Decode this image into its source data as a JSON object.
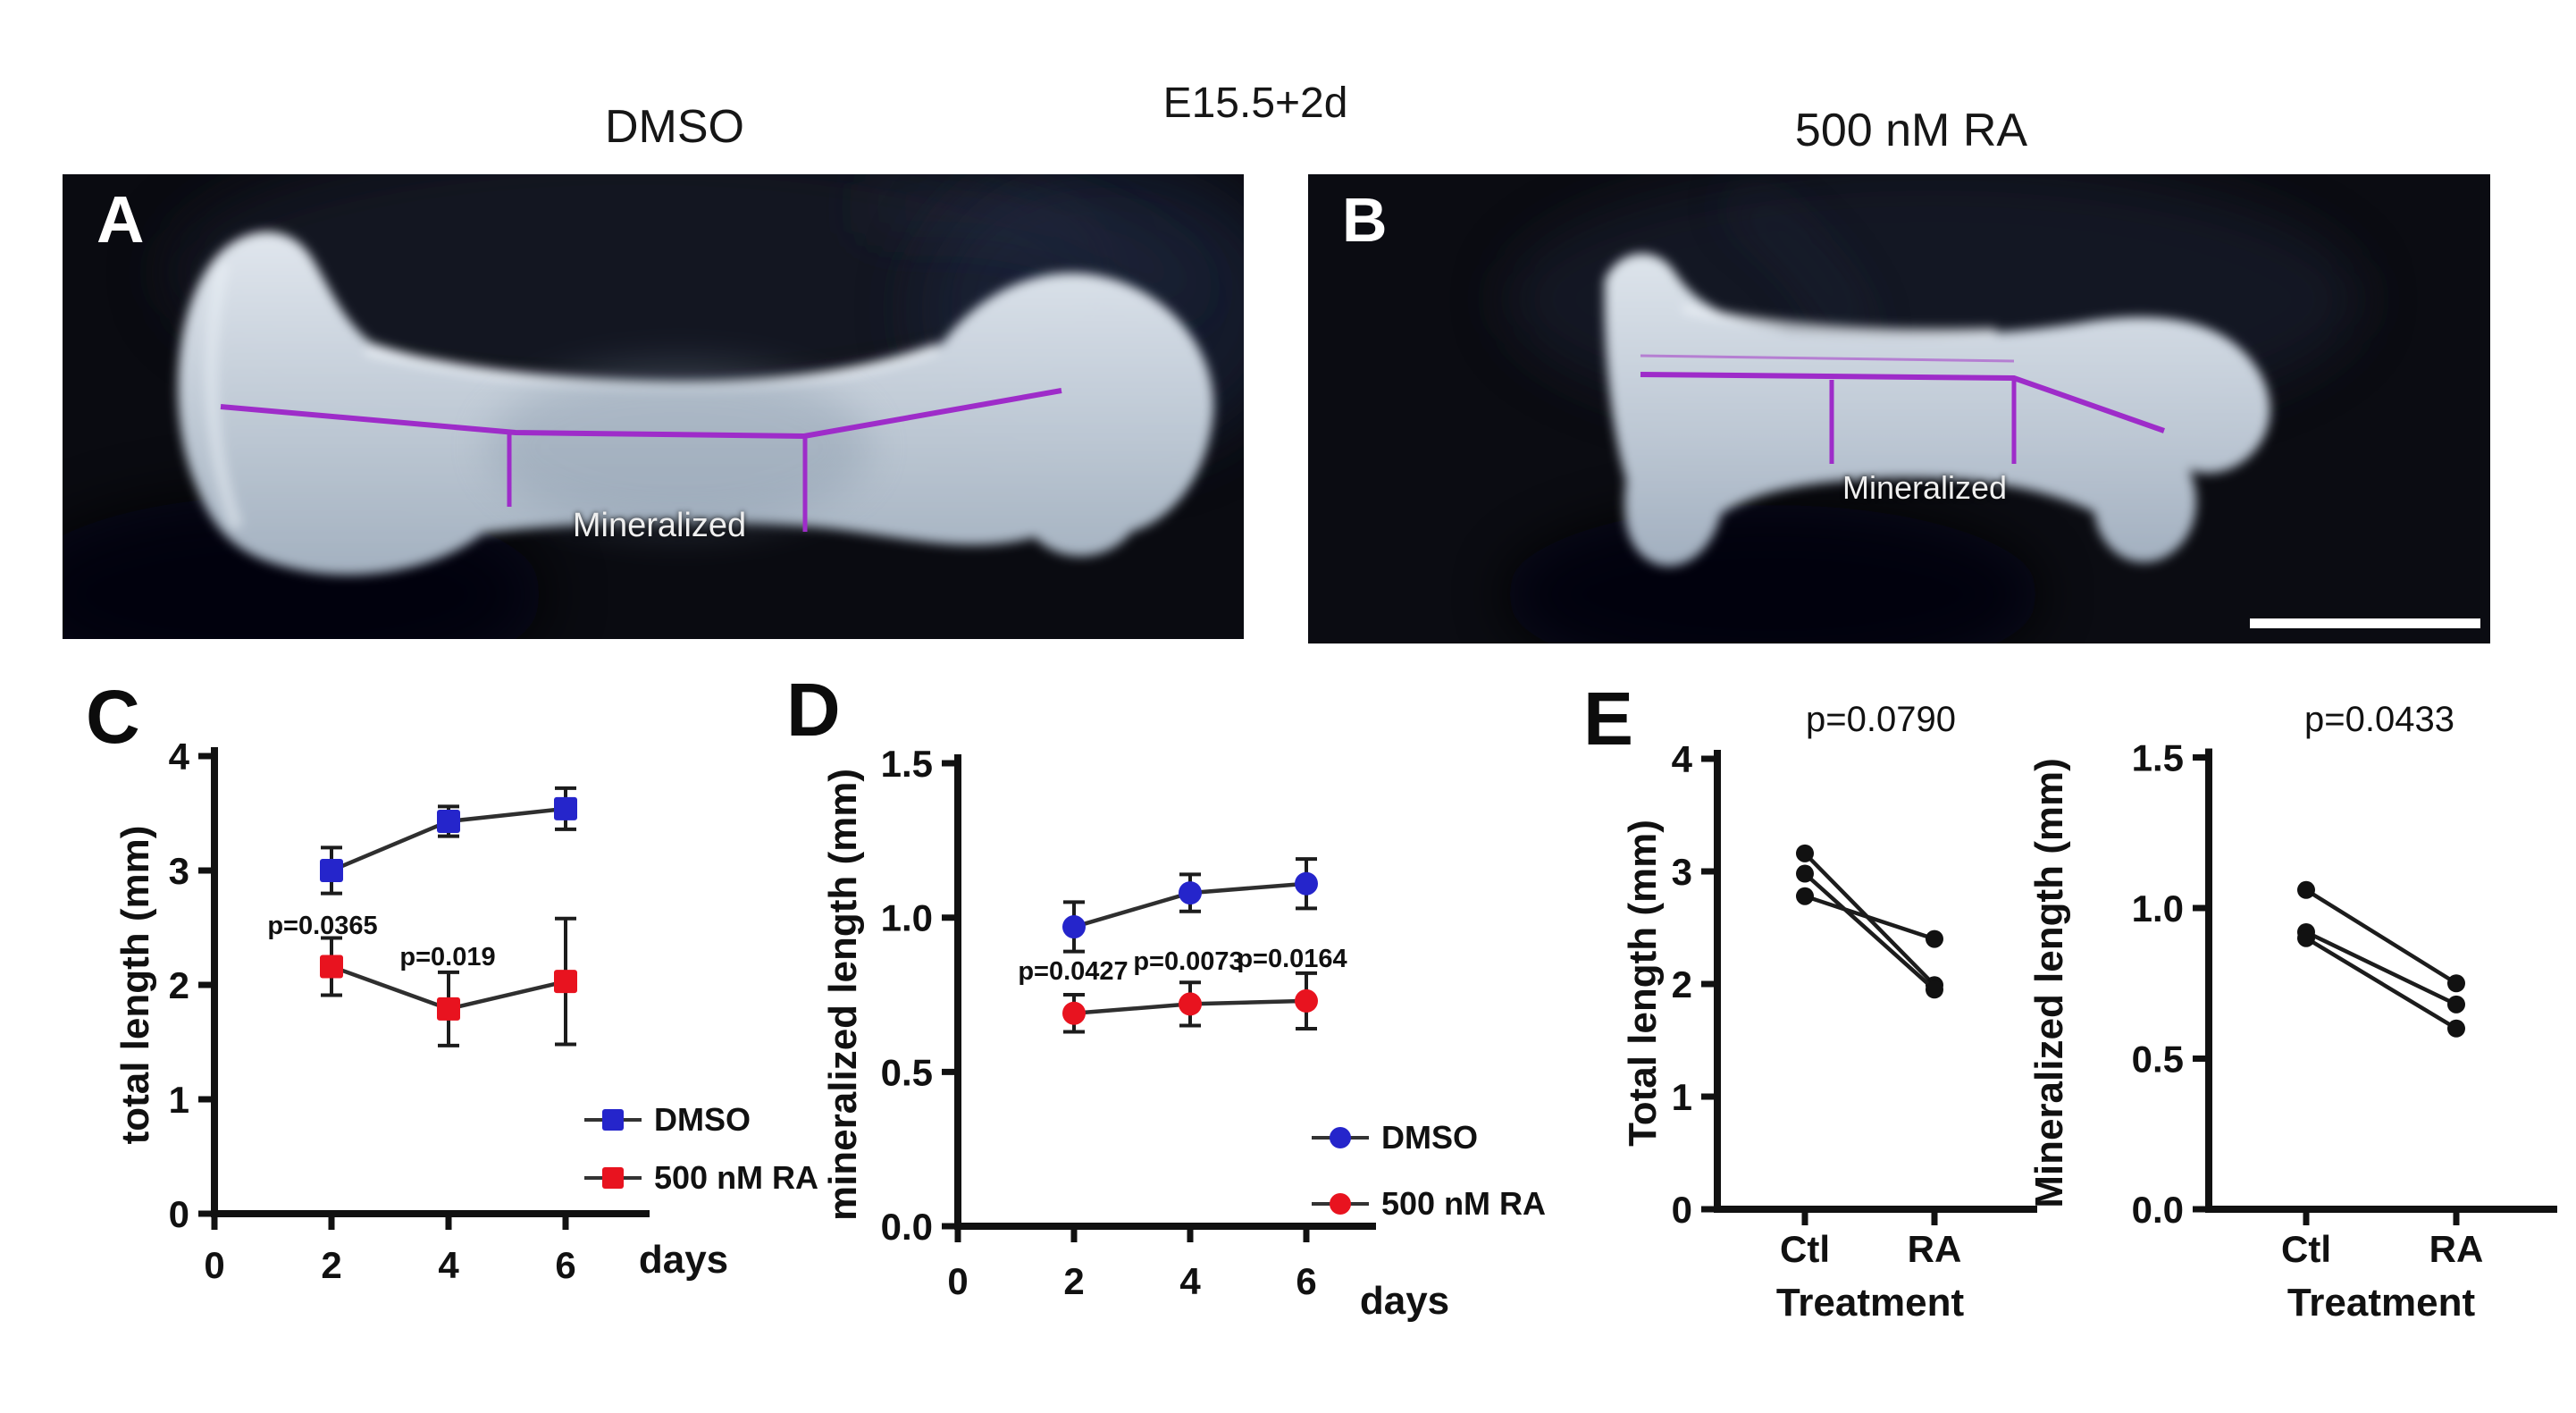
{
  "figure": {
    "titles": {
      "left": "DMSO",
      "center": "E15.5+2d",
      "right": "500 nM RA"
    },
    "panels": {
      "a": {
        "letter": "A",
        "annotation": "Mineralized"
      },
      "b": {
        "letter": "B",
        "annotation": "Mineralized"
      },
      "c": {
        "letter": "C"
      },
      "d": {
        "letter": "D"
      },
      "e": {
        "letter": "E"
      }
    },
    "colors": {
      "dmso_series": "#2525cb",
      "ra_series": "#e8131f",
      "measure_line": "#9e2cc9",
      "pair_line": "#1c1c1c"
    }
  },
  "chart_data": [
    {
      "id": "total-length-timecourse",
      "panel": "C",
      "type": "line",
      "title": "",
      "xlabel": "days",
      "ylabel": "total length (mm)",
      "x": [
        2,
        4,
        6
      ],
      "xlim": [
        0,
        7.4
      ],
      "ylim": [
        0,
        4
      ],
      "xtick_values": [
        0,
        2,
        4,
        6
      ],
      "xtick_labels": [
        "0",
        "2",
        "4",
        "6"
      ],
      "ytick_values": [
        0,
        1,
        2,
        3,
        4
      ],
      "ytick_labels": [
        "0",
        "1",
        "2",
        "3",
        "4"
      ],
      "grid": false,
      "legend_position": "inside-bottom-right",
      "series": [
        {
          "name": "DMSO",
          "color": "#2525cb",
          "marker": "square",
          "values": [
            3.0,
            3.43,
            3.54
          ],
          "errors": [
            0.2,
            0.13,
            0.18
          ]
        },
        {
          "name": "500 nM RA",
          "color": "#e8131f",
          "marker": "square",
          "values": [
            2.16,
            1.79,
            2.03
          ],
          "errors": [
            0.25,
            0.32,
            0.55
          ]
        }
      ],
      "annotations": [
        {
          "text": "p=0.0365",
          "at_day": 2
        },
        {
          "text": "p=0.019",
          "at_day": 4
        }
      ]
    },
    {
      "id": "mineralized-length-timecourse",
      "panel": "D",
      "type": "line",
      "title": "",
      "xlabel": "days",
      "ylabel": "mineralized length (mm)",
      "x": [
        2,
        4,
        6
      ],
      "xlim": [
        0,
        7.4
      ],
      "ylim": [
        0,
        1.5
      ],
      "xtick_values": [
        0,
        2,
        4,
        6
      ],
      "xtick_labels": [
        "0",
        "2",
        "4",
        "6"
      ],
      "ytick_values": [
        0,
        0.5,
        1,
        1.5
      ],
      "ytick_labels": [
        "0.0",
        "0.5",
        "1.0",
        "1.5"
      ],
      "grid": false,
      "legend_position": "inside-bottom-right",
      "series": [
        {
          "name": "DMSO",
          "color": "#2525cb",
          "marker": "circle",
          "values": [
            0.97,
            1.08,
            1.11
          ],
          "errors": [
            0.08,
            0.06,
            0.08
          ]
        },
        {
          "name": "500 nM RA",
          "color": "#e8131f",
          "marker": "circle",
          "values": [
            0.69,
            0.72,
            0.73
          ],
          "errors": [
            0.06,
            0.07,
            0.09
          ]
        }
      ],
      "annotations": [
        {
          "text": "p=0.0427",
          "at_day": 2
        },
        {
          "text": "p=0.0073",
          "at_day": 4
        },
        {
          "text": "p=0.0164",
          "at_day": 6
        }
      ]
    },
    {
      "id": "total-length-paired",
      "panel": "E",
      "type": "paired-line",
      "title": "p=0.0790",
      "xlabel": "Treatment",
      "ylabel": "Total length (mm)",
      "categories": [
        "Ctl",
        "RA"
      ],
      "ylim": [
        0,
        4
      ],
      "ytick_values": [
        0,
        1,
        2,
        3,
        4
      ],
      "ytick_labels": [
        "0",
        "1",
        "2",
        "3",
        "4"
      ],
      "grid": false,
      "pairs": [
        [
          3.16,
          1.99
        ],
        [
          2.98,
          1.95
        ],
        [
          2.78,
          2.4
        ]
      ]
    },
    {
      "id": "mineralized-length-paired",
      "panel": "E",
      "type": "paired-line",
      "title": "p=0.0433",
      "xlabel": "Treatment",
      "ylabel": "Mineralized length (mm)",
      "categories": [
        "Ctl",
        "RA"
      ],
      "ylim": [
        0,
        1.5
      ],
      "ytick_values": [
        0,
        0.5,
        1,
        1.5
      ],
      "ytick_labels": [
        "0.0",
        "0.5",
        "1.0",
        "1.5"
      ],
      "grid": false,
      "pairs": [
        [
          1.06,
          0.75
        ],
        [
          0.92,
          0.68
        ],
        [
          0.9,
          0.6
        ]
      ]
    }
  ]
}
